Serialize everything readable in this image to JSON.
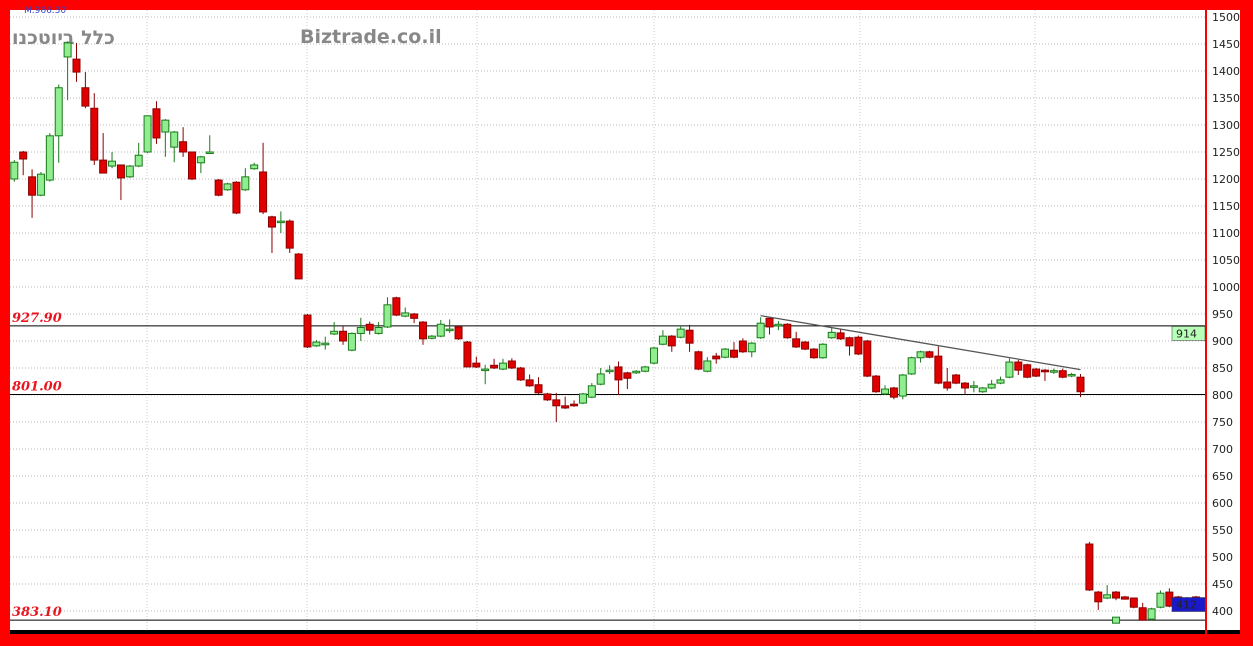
{
  "chart_data": {
    "type": "candlestick",
    "watermark_left": "כלל ביוטכנו",
    "watermark_right": "Biztrade.co.il",
    "top_label": "M.966.30",
    "ylim": [
      361,
      1513
    ],
    "yticks": [
      400,
      450,
      500,
      550,
      600,
      650,
      700,
      750,
      800,
      850,
      900,
      950,
      1000,
      1050,
      1100,
      1150,
      1200,
      1250,
      1300,
      1350,
      1400,
      1450,
      1500
    ],
    "grid": true,
    "levels": [
      {
        "value": 927.9,
        "label": "927.90"
      },
      {
        "value": 801.0,
        "label": "801.00"
      },
      {
        "value": 383.1,
        "label": "383.10"
      }
    ],
    "price_tags": [
      {
        "value": 914,
        "label": "914",
        "color": "#b8ffb8"
      },
      {
        "value": 412,
        "label": "412",
        "color": "#1a1acc"
      }
    ],
    "trendline": {
      "from": [
        85,
        947
      ],
      "to": [
        121,
        847
      ]
    },
    "low_marker": {
      "index": 125,
      "value": 383
    },
    "colors": {
      "up": "#90ee90",
      "up_border": "#1a7a1a",
      "down": "#e00000",
      "down_border": "#8b0000",
      "border": "#ff0000"
    },
    "ohlc": [
      [
        1200,
        1235,
        1195,
        1231
      ],
      [
        1250,
        1252,
        1207,
        1237
      ],
      [
        1204,
        1218,
        1128,
        1170
      ],
      [
        1170,
        1213,
        1168,
        1209
      ],
      [
        1198,
        1285,
        1195,
        1280
      ],
      [
        1280,
        1375,
        1230,
        1369
      ],
      [
        1426,
        1455,
        1346,
        1452
      ],
      [
        1422,
        1452,
        1380,
        1398
      ],
      [
        1369,
        1398,
        1331,
        1335
      ],
      [
        1331,
        1359,
        1226,
        1235
      ],
      [
        1235,
        1285,
        1211,
        1211
      ],
      [
        1224,
        1250,
        1220,
        1233
      ],
      [
        1226,
        1226,
        1161,
        1202
      ],
      [
        1204,
        1226,
        1202,
        1224
      ],
      [
        1224,
        1267,
        1222,
        1244
      ],
      [
        1250,
        1318,
        1248,
        1317
      ],
      [
        1330,
        1344,
        1265,
        1276
      ],
      [
        1287,
        1311,
        1241,
        1309
      ],
      [
        1259,
        1289,
        1231,
        1287
      ],
      [
        1269,
        1296,
        1241,
        1250
      ],
      [
        1250,
        1251,
        1198,
        1200
      ],
      [
        1230,
        1243,
        1211,
        1241
      ],
      [
        1250,
        1281,
        1248,
        1250
      ],
      [
        1198,
        1200,
        1168,
        1170
      ],
      [
        1180,
        1193,
        1178,
        1191
      ],
      [
        1194,
        1196,
        1135,
        1137
      ],
      [
        1180,
        1220,
        1178,
        1204
      ],
      [
        1219,
        1230,
        1217,
        1226
      ],
      [
        1213,
        1267,
        1135,
        1139
      ],
      [
        1130,
        1132,
        1063,
        1111
      ],
      [
        1120,
        1140,
        1100,
        1122
      ],
      [
        1122,
        1125,
        1063,
        1072
      ],
      [
        1061,
        1063,
        1015,
        1015
      ],
      [
        948,
        950,
        887,
        889
      ],
      [
        891,
        902,
        889,
        898
      ],
      [
        893,
        908,
        884,
        896
      ],
      [
        913,
        935,
        911,
        918
      ],
      [
        918,
        928,
        893,
        900
      ],
      [
        883,
        916,
        881,
        914
      ],
      [
        914,
        943,
        900,
        925
      ],
      [
        931,
        936,
        912,
        920
      ],
      [
        914,
        935,
        912,
        925
      ],
      [
        926,
        981,
        924,
        967
      ],
      [
        980,
        982,
        946,
        948
      ],
      [
        946,
        962,
        944,
        952
      ],
      [
        950,
        952,
        933,
        942
      ],
      [
        935,
        937,
        893,
        904
      ],
      [
        905,
        911,
        903,
        909
      ],
      [
        909,
        939,
        907,
        931
      ],
      [
        922,
        940,
        915,
        922
      ],
      [
        926,
        928,
        902,
        904
      ],
      [
        898,
        900,
        852,
        852
      ],
      [
        859,
        871,
        850,
        852
      ],
      [
        848,
        856,
        820,
        848
      ],
      [
        855,
        867,
        848,
        850
      ],
      [
        848,
        867,
        846,
        859
      ],
      [
        863,
        868,
        848,
        850
      ],
      [
        850,
        852,
        826,
        828
      ],
      [
        828,
        838,
        815,
        817
      ],
      [
        819,
        833,
        802,
        804
      ],
      [
        802,
        804,
        789,
        791
      ],
      [
        791,
        804,
        750,
        780
      ],
      [
        780,
        797,
        774,
        776
      ],
      [
        783,
        790,
        778,
        780
      ],
      [
        785,
        804,
        783,
        802
      ],
      [
        796,
        822,
        794,
        817
      ],
      [
        820,
        850,
        818,
        839
      ],
      [
        846,
        855,
        839,
        846
      ],
      [
        852,
        862,
        800,
        828
      ],
      [
        841,
        843,
        811,
        831
      ],
      [
        841,
        846,
        839,
        844
      ],
      [
        844,
        854,
        842,
        852
      ],
      [
        859,
        889,
        857,
        887
      ],
      [
        894,
        920,
        892,
        909
      ],
      [
        909,
        911,
        880,
        891
      ],
      [
        907,
        929,
        905,
        922
      ],
      [
        920,
        930,
        880,
        896
      ],
      [
        880,
        882,
        846,
        848
      ],
      [
        844,
        870,
        842,
        863
      ],
      [
        872,
        878,
        858,
        867
      ],
      [
        870,
        887,
        868,
        885
      ],
      [
        883,
        898,
        868,
        870
      ],
      [
        900,
        905,
        878,
        880
      ],
      [
        880,
        898,
        870,
        896
      ],
      [
        906,
        944,
        904,
        933
      ],
      [
        942,
        944,
        912,
        926
      ],
      [
        928,
        937,
        920,
        931
      ],
      [
        931,
        933,
        904,
        906
      ],
      [
        904,
        917,
        887,
        889
      ],
      [
        898,
        900,
        883,
        885
      ],
      [
        885,
        887,
        867,
        869
      ],
      [
        869,
        896,
        867,
        894
      ],
      [
        906,
        925,
        904,
        916
      ],
      [
        915,
        922,
        902,
        904
      ],
      [
        906,
        908,
        873,
        891
      ],
      [
        907,
        910,
        874,
        876
      ],
      [
        900,
        902,
        833,
        835
      ],
      [
        835,
        837,
        804,
        806
      ],
      [
        802,
        818,
        800,
        811
      ],
      [
        813,
        815,
        792,
        796
      ],
      [
        798,
        839,
        792,
        837
      ],
      [
        839,
        871,
        837,
        869
      ],
      [
        869,
        882,
        860,
        880
      ],
      [
        880,
        882,
        868,
        870
      ],
      [
        872,
        890,
        820,
        822
      ],
      [
        824,
        850,
        808,
        813
      ],
      [
        837,
        839,
        820,
        822
      ],
      [
        822,
        824,
        802,
        813
      ],
      [
        815,
        826,
        805,
        817
      ],
      [
        806,
        815,
        804,
        813
      ],
      [
        813,
        828,
        811,
        820
      ],
      [
        822,
        834,
        820,
        828
      ],
      [
        833,
        868,
        831,
        861
      ],
      [
        861,
        865,
        837,
        846
      ],
      [
        856,
        858,
        831,
        833
      ],
      [
        848,
        850,
        833,
        835
      ],
      [
        846,
        848,
        826,
        843
      ],
      [
        845,
        849,
        839,
        845
      ],
      [
        845,
        849,
        831,
        833
      ],
      [
        838,
        841,
        833,
        838
      ],
      [
        833,
        839,
        796,
        806
      ],
      [
        524,
        528,
        437,
        439
      ],
      [
        435,
        437,
        402,
        417
      ],
      [
        424,
        448,
        422,
        430
      ],
      [
        435,
        437,
        420,
        424
      ],
      [
        426,
        428,
        421,
        422
      ],
      [
        424,
        425,
        405,
        407
      ],
      [
        406,
        415,
        383,
        383
      ],
      [
        385,
        406,
        383,
        404
      ],
      [
        407,
        438,
        405,
        433
      ],
      [
        435,
        442,
        407,
        409
      ],
      [
        426,
        428,
        411,
        415
      ],
      [
        415,
        426,
        413,
        424
      ],
      [
        426,
        428,
        411,
        413
      ]
    ]
  }
}
